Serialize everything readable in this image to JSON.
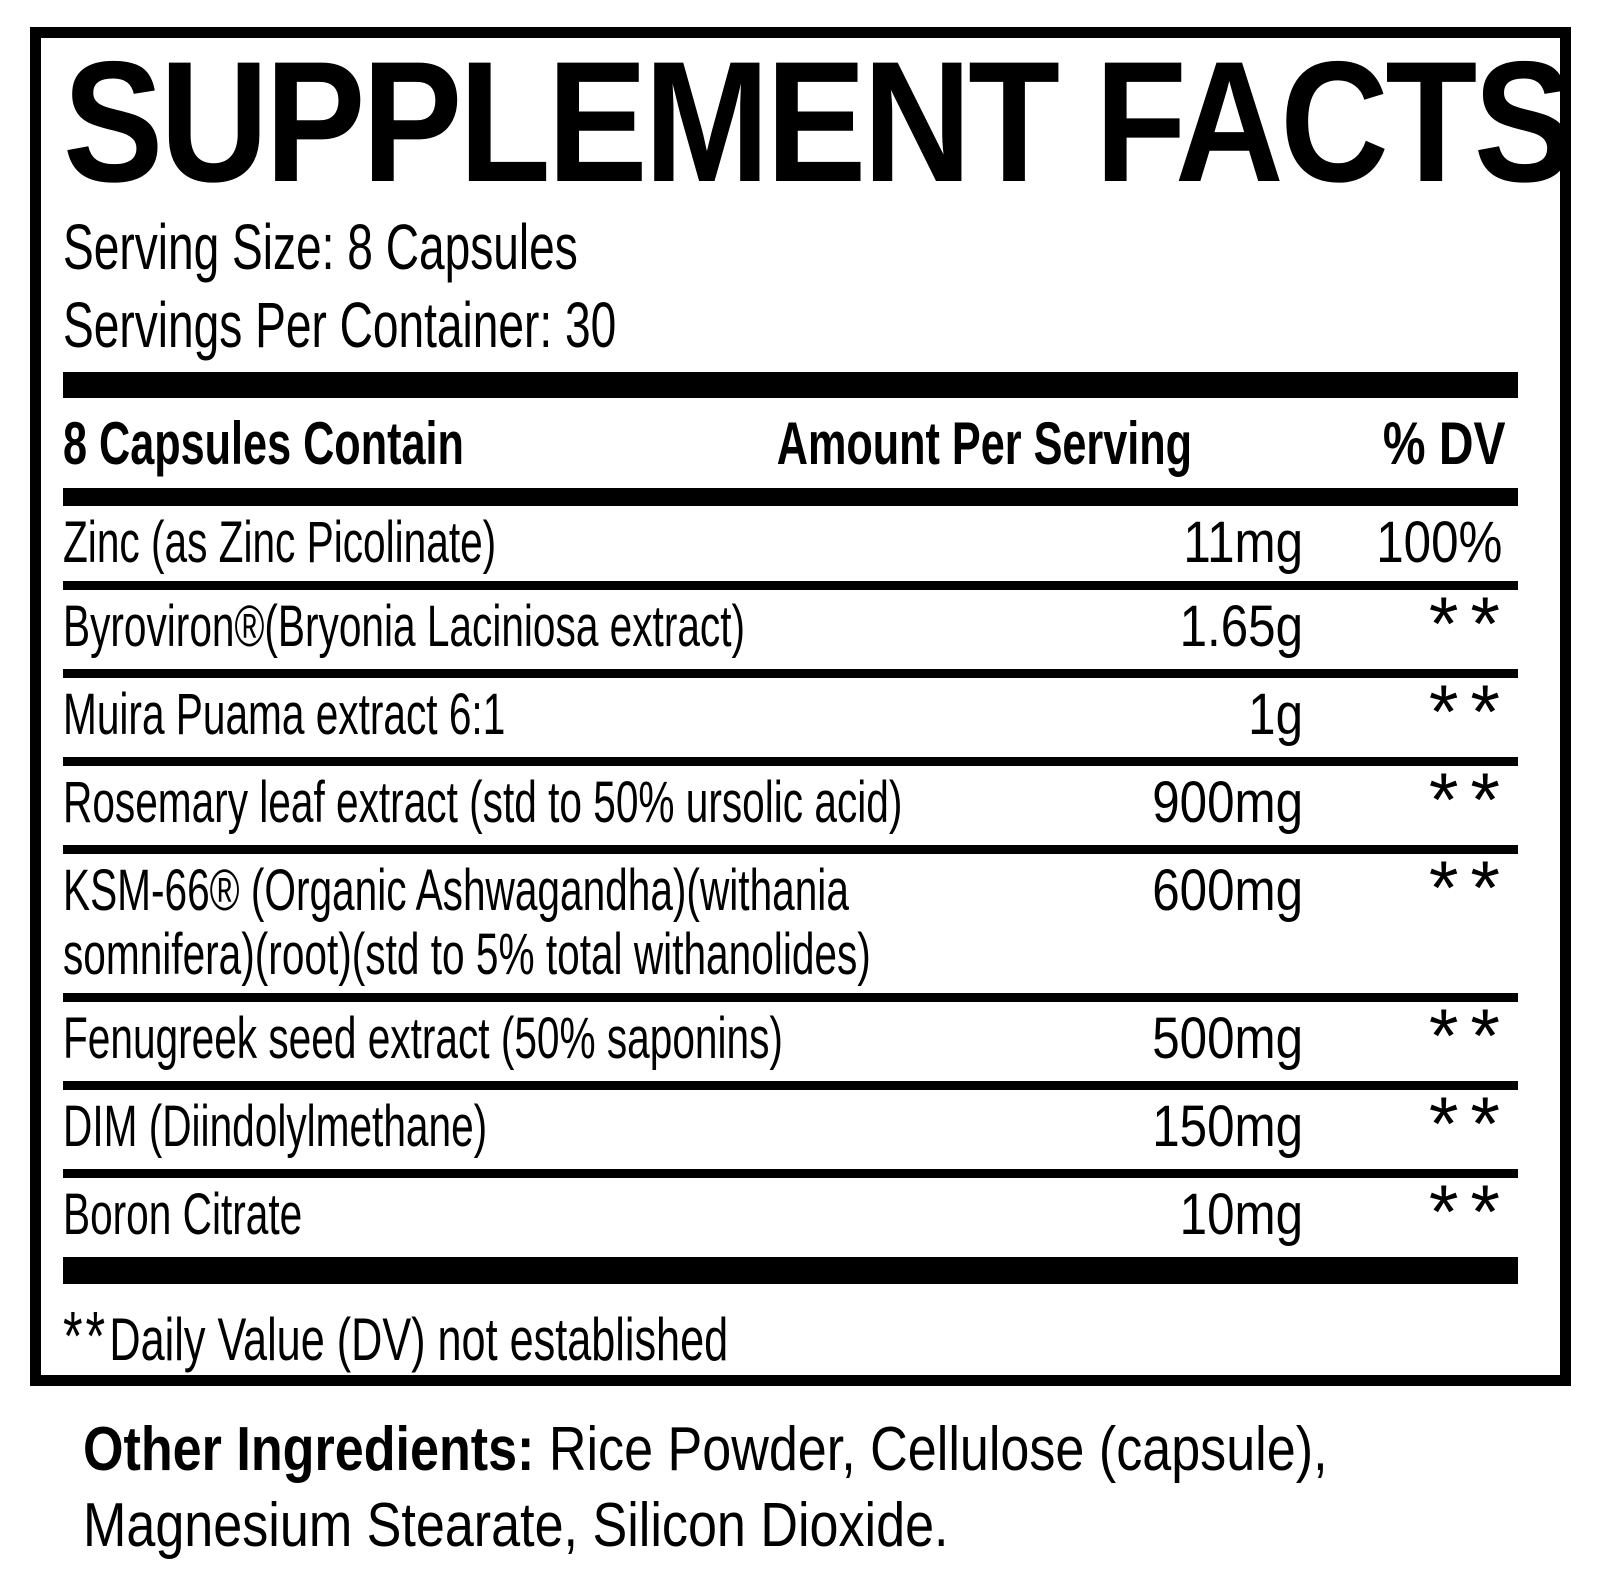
{
  "title": "SUPPLEMENT FACTS",
  "serving": {
    "size_line": "Serving Size: 8 Capsules",
    "per_container_line": "Servings Per Container: 30"
  },
  "table": {
    "header": {
      "contains": "8 Capsules Contain",
      "amount": "Amount Per Serving",
      "dv": "% DV"
    },
    "rows": [
      {
        "name_lines": [
          "Zinc (as Zinc Picolinate)"
        ],
        "amount": "11mg",
        "dv": "100%"
      },
      {
        "name_lines": [
          "Byroviron®(Bryonia Laciniosa extract)"
        ],
        "amount": "1.65g",
        "dv": "**"
      },
      {
        "name_lines": [
          "Muira Puama extract 6:1"
        ],
        "amount": "1g",
        "dv": "**"
      },
      {
        "name_lines": [
          "Rosemary leaf extract (std to 50% ursolic acid)"
        ],
        "amount": "900mg",
        "dv": "**"
      },
      {
        "name_lines": [
          "KSM-66® (Organic Ashwagandha)(withania",
          "somnifera)(root)(std to 5% total withanolides)"
        ],
        "amount": "600mg",
        "dv": "**"
      },
      {
        "name_lines": [
          "Fenugreek seed extract (50% saponins)"
        ],
        "amount": "500mg",
        "dv": "**"
      },
      {
        "name_lines": [
          "DIM (Diindolylmethane)"
        ],
        "amount": "150mg",
        "dv": "**"
      },
      {
        "name_lines": [
          "Boron Citrate"
        ],
        "amount": "10mg",
        "dv": "**"
      }
    ],
    "footnote": {
      "stars": "**",
      "text": "Daily Value (DV) not established"
    }
  },
  "other_ingredients": {
    "label": "Other Ingredients:",
    "line1": " Rice Powder, Cellulose (capsule),",
    "line2": "Magnesium Stearate, Silicon Dioxide."
  },
  "colors": {
    "ink": "#000000",
    "background": "#ffffff"
  }
}
